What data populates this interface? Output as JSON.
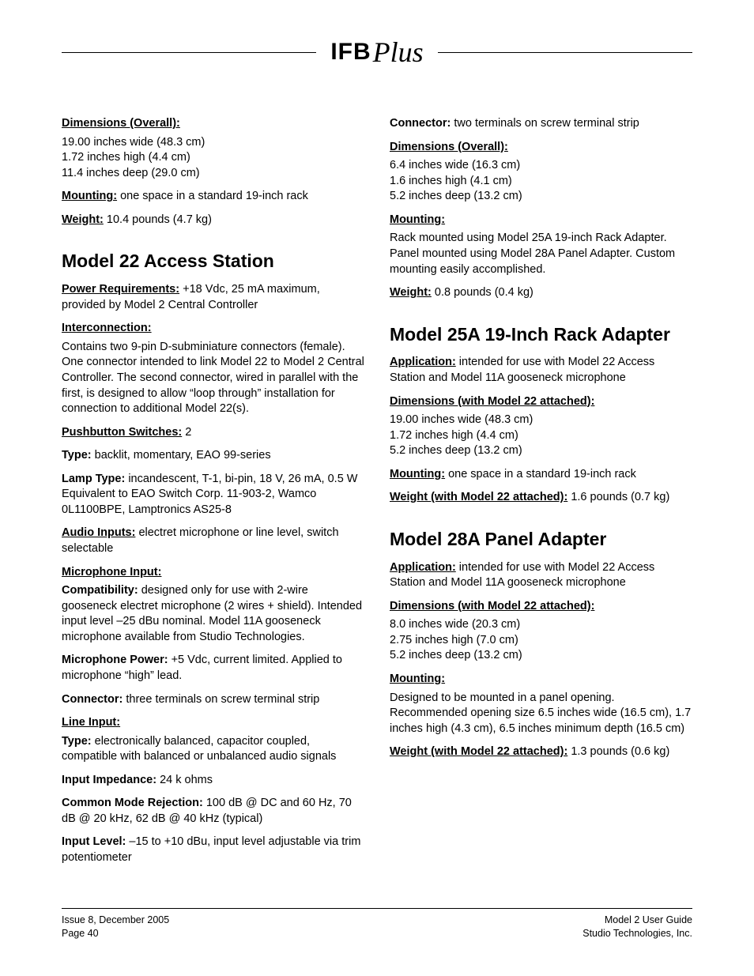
{
  "logo": {
    "ifb": "IFB",
    "plus": "Plus"
  },
  "left": {
    "dims_overall_label": "Dimensions (Overall):",
    "dims_overall": [
      "19.00 inches wide (48.3 cm)",
      "1.72 inches high (4.4 cm)",
      "11.4 inches deep (29.0 cm)"
    ],
    "mounting_label": "Mounting:",
    "mounting_text": " one space in a standard 19-inch rack",
    "weight_label": "Weight:",
    "weight_text": " 10.4 pounds (4.7 kg)",
    "m22_title": "Model 22 Access Station",
    "power_req_label": "Power Requirements:",
    "power_req_text": " +18 Vdc, 25 mA maximum, provided by Model 2 Central Controller",
    "interconnection_label": "Interconnection:",
    "interconnection_text": "Contains two 9-pin D-subminiature connectors (female). One connector intended to link Model 22 to Model 2 Central Controller. The second connector, wired in parallel with the first, is designed to allow “loop through” installation for connection to additional Model 22(s).",
    "pushbutton_label": "Pushbutton Switches:",
    "pushbutton_count": " 2",
    "type_label": "Type:",
    "type_text": " backlit, momentary, EAO 99-series",
    "lamp_label": "Lamp Type:",
    "lamp_text": " incandescent, T-1, bi-pin, 18 V, 26 mA, 0.5 W Equivalent to EAO Switch Corp. 11-903-2, Wamco 0L1100BPE, Lamptronics AS25-8",
    "audio_inputs_label": "Audio Inputs:",
    "audio_inputs_text": " electret microphone or line level, switch selectable",
    "mic_input_label": "Microphone Input:",
    "compat_label": "Compatibility:",
    "compat_text": " designed only for use with 2-wire gooseneck electret microphone (2 wires + shield). Intended input level –25 dBu nominal. Model 11A gooseneck microphone available from Studio Technologies.",
    "mic_power_label": "Microphone Power:",
    "mic_power_text": " +5 Vdc, current limited. Applied to microphone “high” lead.",
    "connector_label": "Connector:",
    "connector_text": " three terminals on screw terminal strip",
    "line_input_label": "Line Input:",
    "line_type_label": "Type:",
    "line_type_text": " electronically balanced, capacitor coupled, compatible with balanced or unbalanced audio signals",
    "imp_label": "Input Impedance:",
    "imp_text": " 24 k ohms",
    "cmr_label": "Common Mode Rejection:",
    "cmr_text": " 100 dB @ DC and 60 Hz, 70 dB @ 20 kHz, 62 dB @ 40 kHz (typical)",
    "input_level_label": "Input Level:",
    "input_level_text": " –15 to +10 dBu, input level adjustable via trim potentiometer"
  },
  "right": {
    "connector_label": "Connector:",
    "connector_text": " two terminals on screw terminal strip",
    "dims_overall_label": "Dimensions (Overall):",
    "dims_overall": [
      "6.4 inches wide (16.3 cm)",
      "1.6 inches high (4.1 cm)",
      "5.2 inches deep (13.2 cm)"
    ],
    "mounting_label": "Mounting:",
    "mounting_text": "Rack mounted using Model 25A 19-inch Rack Adapter. Panel mounted using Model 28A Panel Adapter. Custom mounting easily accomplished.",
    "weight_label": "Weight:",
    "weight_text": " 0.8 pounds (0.4 kg)",
    "m25a_title": "Model 25A 19-Inch Rack Adapter",
    "m25a_app_label": "Application:",
    "m25a_app_text": " intended for use with Model 22 Access Station and Model 11A gooseneck microphone",
    "m25a_dims_label": "Dimensions (with Model 22 attached):",
    "m25a_dims": [
      "19.00 inches wide (48.3 cm)",
      "1.72 inches high (4.4 cm)",
      "5.2 inches deep (13.2 cm)"
    ],
    "m25a_mount_label": "Mounting:",
    "m25a_mount_text": " one space in a standard 19-inch rack",
    "m25a_weight_label": "Weight (with Model 22 attached):",
    "m25a_weight_text": " 1.6 pounds (0.7 kg)",
    "m28a_title": "Model 28A Panel Adapter",
    "m28a_app_label": "Application:",
    "m28a_app_text": " intended for use with Model 22 Access Station and Model 11A gooseneck microphone",
    "m28a_dims_label": "Dimensions (with Model 22 attached):",
    "m28a_dims": [
      "8.0 inches wide (20.3 cm)",
      "2.75 inches high (7.0 cm)",
      "5.2 inches deep (13.2 cm)"
    ],
    "m28a_mount_label": "Mounting:",
    "m28a_mount_text": "Designed to be mounted in a panel opening. Recommended opening size 6.5 inches wide (16.5 cm), 1.7 inches high (4.3 cm), 6.5 inches minimum depth (16.5 cm)",
    "m28a_weight_label": "Weight (with Model 22 attached):",
    "m28a_weight_text": " 1.3 pounds (0.6 kg)"
  },
  "footer": {
    "left1": "Issue 8, December 2005",
    "left2": "Page 40",
    "right1": "Model 2 User Guide",
    "right2": "Studio Technologies, Inc."
  }
}
